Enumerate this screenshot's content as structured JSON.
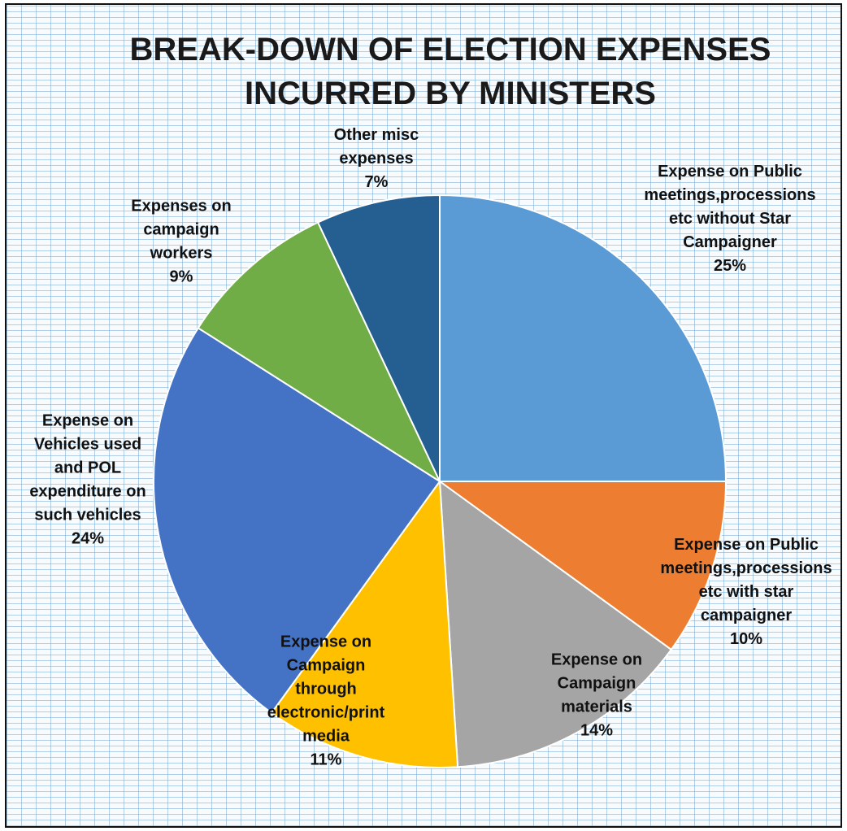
{
  "chart_data": {
    "type": "pie",
    "title_lines": [
      "BREAK-DOWN OF ELECTION EXPENSES",
      "INCURRED BY MINISTERS"
    ],
    "start_angle_deg": 0,
    "direction": "clockwise",
    "legend": "none",
    "slices": [
      {
        "label": "Expense on Public meetings,processions etc without Star Campaigner",
        "label_lines": [
          "Expense on Public",
          "meetings,processions",
          "etc without Star",
          "Campaigner"
        ],
        "value": 25,
        "percent_label": "25%",
        "color": "#5B9BD5"
      },
      {
        "label": "Expense on Public meetings,processions etc with star campaigner",
        "label_lines": [
          "Expense on Public",
          "meetings,processions",
          "etc with star",
          "campaigner"
        ],
        "value": 10,
        "percent_label": "10%",
        "color": "#ED7D31"
      },
      {
        "label": "Expense on Campaign materials",
        "label_lines": [
          "Expense on",
          "Campaign",
          "materials"
        ],
        "value": 14,
        "percent_label": "14%",
        "color": "#A5A5A5"
      },
      {
        "label": "Expense on Campaign through electronic/print media",
        "label_lines": [
          "Expense on",
          "Campaign",
          "through",
          "electronic/print",
          "media"
        ],
        "value": 11,
        "percent_label": "11%",
        "color": "#FFC000"
      },
      {
        "label": "Expense on Vehicles used and POL expenditure on such vehicles",
        "label_lines": [
          "Expense on",
          "Vehicles used",
          "and POL",
          "expenditure on",
          "such vehicles"
        ],
        "value": 24,
        "percent_label": "24%",
        "color": "#4472C4"
      },
      {
        "label": "Expenses on campaign workers",
        "label_lines": [
          "Expenses on",
          "campaign",
          "workers"
        ],
        "value": 9,
        "percent_label": "9%",
        "color": "#70AD47"
      },
      {
        "label": "Other misc expenses",
        "label_lines": [
          "Other misc",
          "expenses"
        ],
        "value": 7,
        "percent_label": "7%",
        "color": "#255E91"
      }
    ]
  }
}
